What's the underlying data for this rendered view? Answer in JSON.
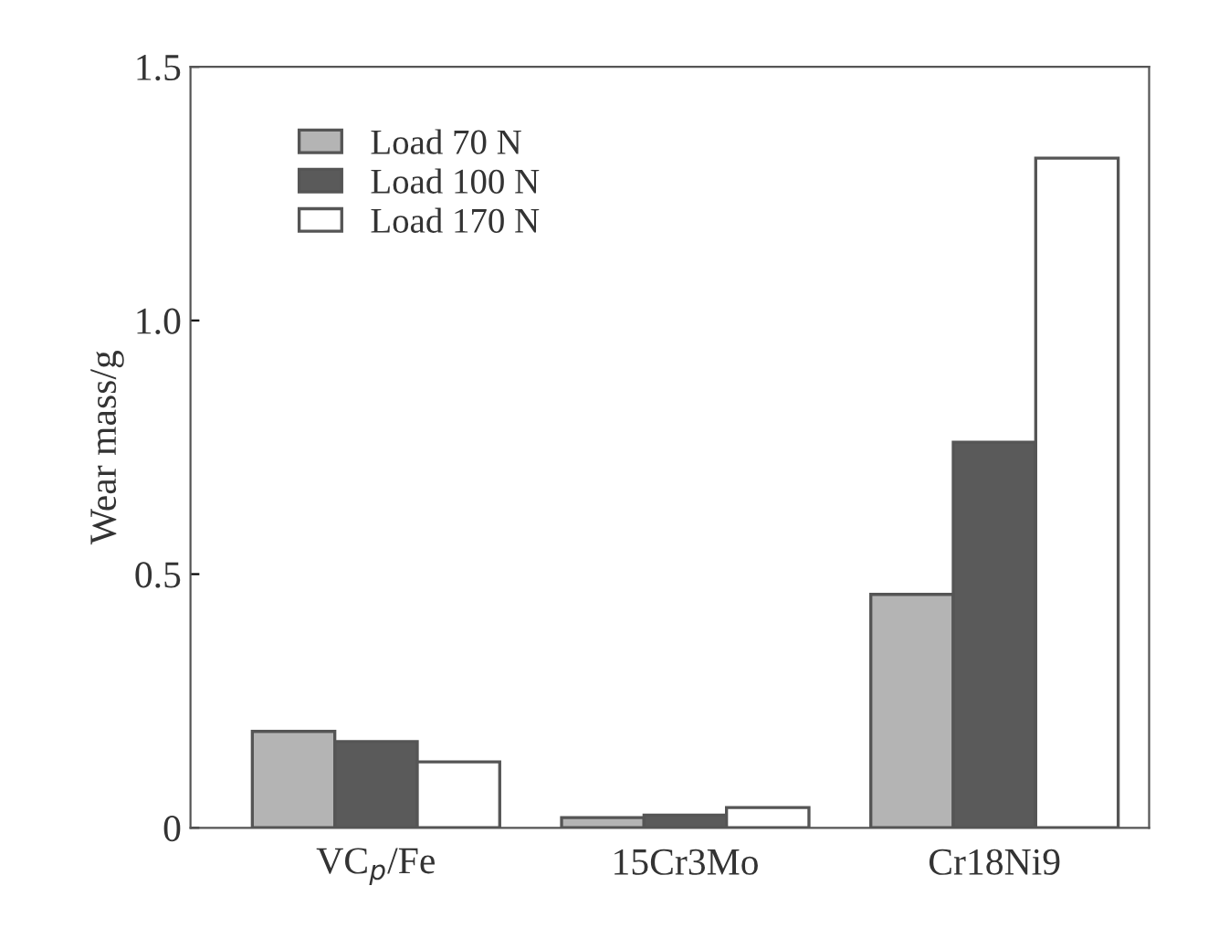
{
  "chart_data": {
    "type": "bar",
    "ylabel": "Wear mass/g",
    "categories": [
      "VC$_{p}$/Fe",
      "15Cr3Mo",
      "Cr18Ni9"
    ],
    "series": [
      {
        "name": "Load 70 N",
        "color": "#b4b4b4",
        "values": [
          0.19,
          0.02,
          0.46
        ]
      },
      {
        "name": "Load 100 N",
        "color": "#5a5a5a",
        "values": [
          0.17,
          0.025,
          0.76
        ]
      },
      {
        "name": "Load 170 N",
        "color": "#ffffff",
        "values": [
          0.13,
          0.04,
          1.32
        ]
      }
    ],
    "ylim": [
      0,
      1.5
    ],
    "yticks": [
      0,
      0.5,
      {
        "value": 1,
        "label": "1.0"
      },
      1.5
    ],
    "legend": "top left",
    "grid": false
  }
}
